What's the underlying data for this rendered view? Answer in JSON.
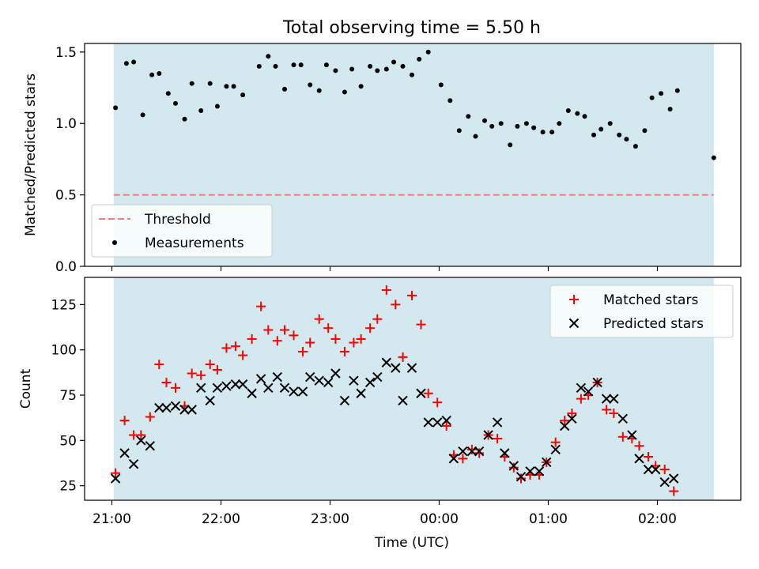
{
  "figure": {
    "title": "Total observing time = 5.50 h",
    "shade_color": "#d3e9ef",
    "threshold_color": "#f07c7c",
    "matched_color": "#ff0000",
    "predicted_color": "#000000",
    "measurement_color": "#000000"
  },
  "chart_data": [
    {
      "type": "scatter",
      "title": "Total observing time = 5.50 h",
      "xlabel": "",
      "ylabel": "Matched/Predicted stars",
      "ylim": [
        0,
        1.56
      ],
      "yticks": [
        "0.0",
        "0.5",
        "1.0",
        "1.5"
      ],
      "shaded_x_range": [
        "21:01",
        "02:31"
      ],
      "legend_position": "lower-left",
      "series": [
        {
          "name": "Threshold",
          "style": "dashed-line",
          "points": [
            [
              "21:01",
              0.5
            ],
            [
              "02:31",
              0.5
            ]
          ]
        },
        {
          "name": "Measurements",
          "style": "dot",
          "points": [
            [
              "21:02",
              1.11
            ],
            [
              "21:08",
              1.42
            ],
            [
              "21:12",
              1.43
            ],
            [
              "21:17",
              1.06
            ],
            [
              "21:22",
              1.34
            ],
            [
              "21:26",
              1.35
            ],
            [
              "21:31",
              1.21
            ],
            [
              "21:35",
              1.14
            ],
            [
              "21:40",
              1.03
            ],
            [
              "21:44",
              1.28
            ],
            [
              "21:49",
              1.09
            ],
            [
              "21:54",
              1.28
            ],
            [
              "21:58",
              1.12
            ],
            [
              "22:03",
              1.26
            ],
            [
              "22:07",
              1.26
            ],
            [
              "22:12",
              1.2
            ],
            [
              "22:21",
              1.4
            ],
            [
              "22:26",
              1.47
            ],
            [
              "22:30",
              1.4
            ],
            [
              "22:35",
              1.24
            ],
            [
              "22:40",
              1.41
            ],
            [
              "22:44",
              1.41
            ],
            [
              "22:49",
              1.27
            ],
            [
              "22:54",
              1.23
            ],
            [
              "22:58",
              1.41
            ],
            [
              "23:03",
              1.37
            ],
            [
              "23:08",
              1.22
            ],
            [
              "23:12",
              1.38
            ],
            [
              "23:17",
              1.26
            ],
            [
              "23:22",
              1.4
            ],
            [
              "23:26",
              1.37
            ],
            [
              "23:31",
              1.38
            ],
            [
              "23:35",
              1.43
            ],
            [
              "23:40",
              1.4
            ],
            [
              "23:45",
              1.34
            ],
            [
              "23:49",
              1.45
            ],
            [
              "23:54",
              1.5
            ],
            [
              "00:01",
              1.27
            ],
            [
              "00:06",
              1.16
            ],
            [
              "00:11",
              0.95
            ],
            [
              "00:16",
              1.05
            ],
            [
              "00:20",
              0.91
            ],
            [
              "00:25",
              1.02
            ],
            [
              "00:29",
              0.98
            ],
            [
              "00:34",
              1.0
            ],
            [
              "00:39",
              0.85
            ],
            [
              "00:43",
              0.98
            ],
            [
              "00:48",
              1.0
            ],
            [
              "00:52",
              0.97
            ],
            [
              "00:57",
              0.94
            ],
            [
              "01:02",
              0.94
            ],
            [
              "01:06",
              1.0
            ],
            [
              "01:11",
              1.09
            ],
            [
              "01:16",
              1.07
            ],
            [
              "01:20",
              1.05
            ],
            [
              "01:25",
              0.92
            ],
            [
              "01:29",
              0.96
            ],
            [
              "01:34",
              1.0
            ],
            [
              "01:39",
              0.92
            ],
            [
              "01:43",
              0.89
            ],
            [
              "01:48",
              0.84
            ],
            [
              "01:53",
              0.95
            ],
            [
              "01:57",
              1.18
            ],
            [
              "02:02",
              1.21
            ],
            [
              "02:07",
              1.1
            ],
            [
              "02:11",
              1.23
            ],
            [
              "02:31",
              0.76
            ]
          ]
        }
      ]
    },
    {
      "type": "scatter",
      "title": "",
      "xlabel": "Time (UTC)",
      "ylabel": "Count",
      "ylim": [
        17,
        140
      ],
      "yticks": [
        "25",
        "50",
        "75",
        "100",
        "125"
      ],
      "xticks": [
        "21:00",
        "22:00",
        "23:00",
        "00:00",
        "01:00",
        "02:00"
      ],
      "shaded_x_range": [
        "21:01",
        "02:31"
      ],
      "legend_position": "upper-right",
      "series": [
        {
          "name": "Matched stars",
          "marker": "plus",
          "points": [
            [
              "21:02",
              32
            ],
            [
              "21:07",
              61
            ],
            [
              "21:12",
              53
            ],
            [
              "21:16",
              53
            ],
            [
              "21:21",
              63
            ],
            [
              "21:26",
              92
            ],
            [
              "21:30",
              82
            ],
            [
              "21:35",
              79
            ],
            [
              "21:40",
              69
            ],
            [
              "21:44",
              87
            ],
            [
              "21:49",
              86
            ],
            [
              "21:54",
              92
            ],
            [
              "21:58",
              89
            ],
            [
              "22:03",
              101
            ],
            [
              "22:08",
              102
            ],
            [
              "22:12",
              97
            ],
            [
              "22:17",
              106
            ],
            [
              "22:22",
              124
            ],
            [
              "22:26",
              111
            ],
            [
              "22:31",
              105
            ],
            [
              "22:35",
              111
            ],
            [
              "22:40",
              108
            ],
            [
              "22:45",
              99
            ],
            [
              "22:49",
              104
            ],
            [
              "22:54",
              117
            ],
            [
              "22:59",
              112
            ],
            [
              "23:03",
              106
            ],
            [
              "23:08",
              99
            ],
            [
              "23:13",
              104
            ],
            [
              "23:17",
              106
            ],
            [
              "23:22",
              112
            ],
            [
              "23:26",
              117
            ],
            [
              "23:31",
              133
            ],
            [
              "23:36",
              125
            ],
            [
              "23:40",
              96
            ],
            [
              "23:45",
              130
            ],
            [
              "23:50",
              114
            ],
            [
              "23:54",
              76
            ],
            [
              "23:59",
              71
            ],
            [
              "00:04",
              58
            ],
            [
              "00:08",
              42
            ],
            [
              "00:13",
              40
            ],
            [
              "00:18",
              45
            ],
            [
              "00:22",
              43
            ],
            [
              "00:27",
              53
            ],
            [
              "00:32",
              51
            ],
            [
              "00:36",
              41
            ],
            [
              "00:41",
              35
            ],
            [
              "00:45",
              29
            ],
            [
              "00:50",
              31
            ],
            [
              "00:55",
              31
            ],
            [
              "00:59",
              38
            ],
            [
              "01:04",
              49
            ],
            [
              "01:09",
              61
            ],
            [
              "01:13",
              65
            ],
            [
              "01:18",
              73
            ],
            [
              "01:22",
              75
            ],
            [
              "01:27",
              82
            ],
            [
              "01:32",
              67
            ],
            [
              "01:36",
              65
            ],
            [
              "01:41",
              52
            ],
            [
              "01:46",
              51
            ],
            [
              "01:50",
              47
            ],
            [
              "01:55",
              41
            ],
            [
              "01:59",
              36
            ],
            [
              "02:04",
              34
            ],
            [
              "02:09",
              22
            ]
          ]
        },
        {
          "name": "Predicted stars",
          "marker": "x",
          "points": [
            [
              "21:02",
              29
            ],
            [
              "21:07",
              43
            ],
            [
              "21:12",
              37
            ],
            [
              "21:16",
              50
            ],
            [
              "21:21",
              47
            ],
            [
              "21:26",
              68
            ],
            [
              "21:30",
              68
            ],
            [
              "21:35",
              69
            ],
            [
              "21:40",
              67
            ],
            [
              "21:44",
              67
            ],
            [
              "21:49",
              79
            ],
            [
              "21:54",
              72
            ],
            [
              "21:58",
              79
            ],
            [
              "22:03",
              80
            ],
            [
              "22:08",
              81
            ],
            [
              "22:12",
              81
            ],
            [
              "22:17",
              76
            ],
            [
              "22:22",
              84
            ],
            [
              "22:26",
              79
            ],
            [
              "22:31",
              85
            ],
            [
              "22:35",
              79
            ],
            [
              "22:40",
              77
            ],
            [
              "22:45",
              77
            ],
            [
              "22:49",
              85
            ],
            [
              "22:54",
              83
            ],
            [
              "22:59",
              82
            ],
            [
              "23:03",
              87
            ],
            [
              "23:08",
              72
            ],
            [
              "23:13",
              83
            ],
            [
              "23:17",
              76
            ],
            [
              "23:22",
              82
            ],
            [
              "23:26",
              85
            ],
            [
              "23:31",
              93
            ],
            [
              "23:36",
              90
            ],
            [
              "23:40",
              72
            ],
            [
              "23:45",
              90
            ],
            [
              "23:50",
              76
            ],
            [
              "23:54",
              60
            ],
            [
              "23:59",
              60
            ],
            [
              "00:04",
              61
            ],
            [
              "00:08",
              40
            ],
            [
              "00:13",
              44
            ],
            [
              "00:18",
              44
            ],
            [
              "00:22",
              44
            ],
            [
              "00:27",
              53
            ],
            [
              "00:32",
              60
            ],
            [
              "00:36",
              43
            ],
            [
              "00:41",
              36
            ],
            [
              "00:45",
              30
            ],
            [
              "00:50",
              33
            ],
            [
              "00:55",
              33
            ],
            [
              "00:59",
              38
            ],
            [
              "01:04",
              45
            ],
            [
              "01:09",
              58
            ],
            [
              "01:13",
              62
            ],
            [
              "01:18",
              79
            ],
            [
              "01:22",
              77
            ],
            [
              "01:27",
              82
            ],
            [
              "01:32",
              73
            ],
            [
              "01:36",
              73
            ],
            [
              "01:41",
              62
            ],
            [
              "01:46",
              53
            ],
            [
              "01:50",
              40
            ],
            [
              "01:55",
              34
            ],
            [
              "01:59",
              34
            ],
            [
              "02:04",
              27
            ],
            [
              "02:09",
              29
            ]
          ]
        }
      ]
    }
  ]
}
